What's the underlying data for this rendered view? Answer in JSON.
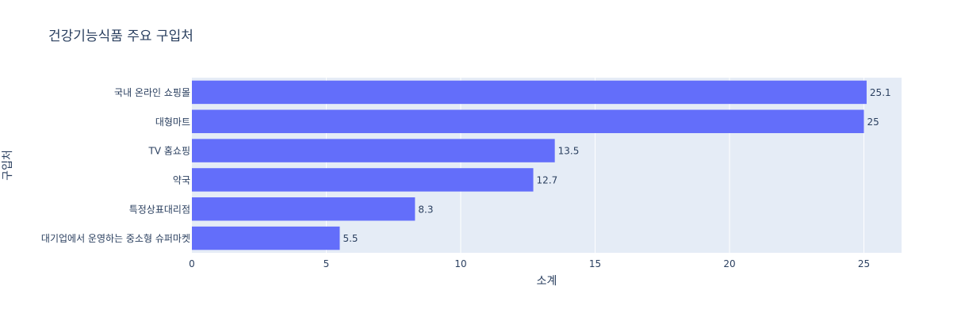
{
  "chart_data": {
    "type": "bar",
    "orientation": "horizontal",
    "title": "건강기능식품 주요 구입처",
    "xlabel": "소계",
    "ylabel": "구입처",
    "categories": [
      "국내 온라인 쇼핑몰",
      "대형마트",
      "TV 홈쇼핑",
      "약국",
      "특정상표대리점",
      "대기업에서 운영하는 중소형 슈퍼마켓"
    ],
    "values": [
      25.1,
      25,
      13.5,
      12.7,
      8.3,
      5.5
    ],
    "value_labels": [
      "25.1",
      "25",
      "13.5",
      "12.7",
      "8.3",
      "5.5"
    ],
    "xlim": [
      0,
      26.4
    ],
    "xticks": [
      0,
      5,
      10,
      15,
      20,
      25
    ],
    "grid": true,
    "legend": "none",
    "colors": {
      "bar": "#636efa",
      "plot_background": "#e5ecf6",
      "grid": "#ffffff",
      "text": "#2a3f5f"
    }
  }
}
